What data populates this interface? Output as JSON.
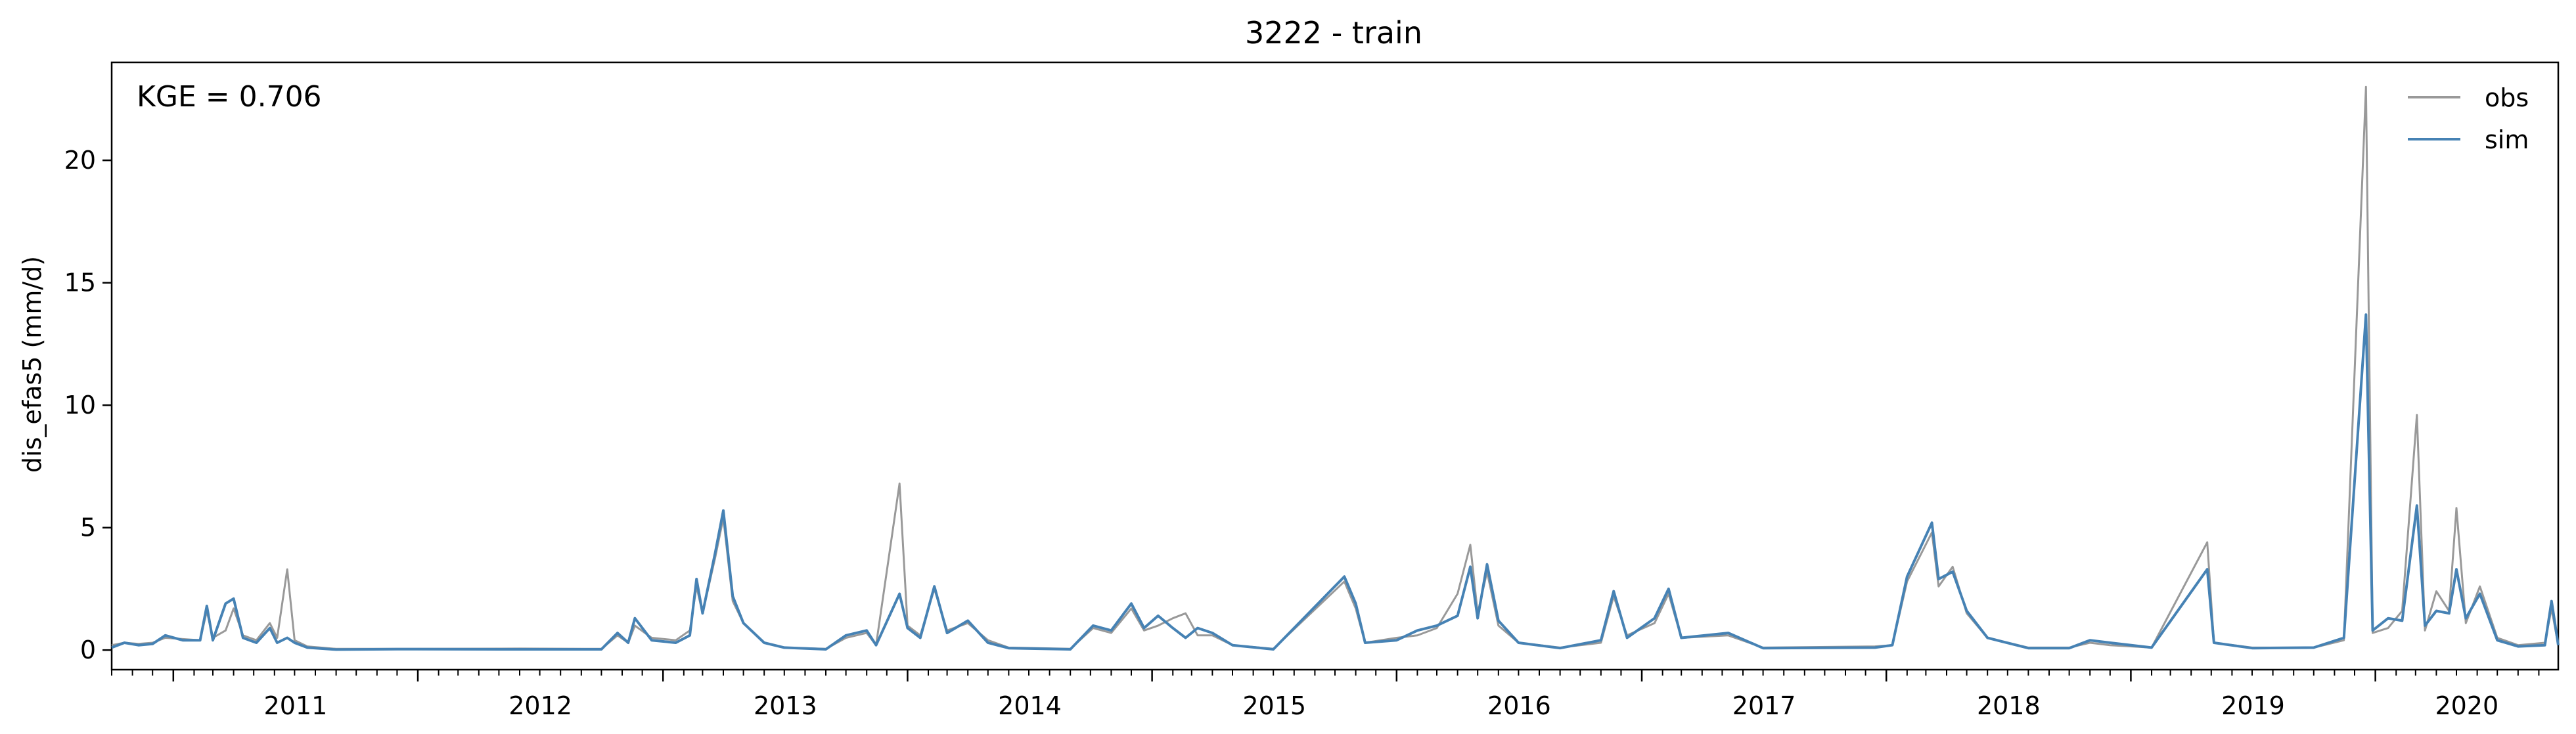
{
  "chart_data": {
    "type": "line",
    "title": "3222 - train",
    "xlabel": "",
    "ylabel": "dis_efas5 (mm/d)",
    "annotation": "KGE = 0.706",
    "legend_position": "top-right",
    "grid": false,
    "x_range": [
      "2010-10-01",
      "2020-09-30"
    ],
    "y_range": [
      -0.8,
      24.0
    ],
    "x_tick_labels": [
      "2011",
      "2012",
      "2013",
      "2014",
      "2015",
      "2016",
      "2017",
      "2018",
      "2019",
      "2020"
    ],
    "x_tick_dates": [
      "2011-01-01",
      "2012-01-01",
      "2013-01-01",
      "2014-01-01",
      "2015-01-01",
      "2016-01-01",
      "2017-01-01",
      "2018-01-01",
      "2019-01-01",
      "2020-01-01"
    ],
    "y_ticks": [
      0,
      5,
      10,
      15,
      20
    ],
    "y_tick_labels": [
      "0",
      "5",
      "10",
      "15",
      "20"
    ],
    "series": [
      {
        "name": "obs",
        "color": "#999999",
        "points": [
          [
            "2010-10-01",
            0.2
          ],
          [
            "2010-10-20",
            0.3
          ],
          [
            "2010-11-10",
            0.25
          ],
          [
            "2010-12-01",
            0.3
          ],
          [
            "2010-12-20",
            0.5
          ],
          [
            "2011-01-15",
            0.45
          ],
          [
            "2011-02-10",
            0.4
          ],
          [
            "2011-02-20",
            1.6
          ],
          [
            "2011-03-01",
            0.5
          ],
          [
            "2011-03-20",
            0.8
          ],
          [
            "2011-04-01",
            1.7
          ],
          [
            "2011-04-15",
            0.6
          ],
          [
            "2011-05-05",
            0.4
          ],
          [
            "2011-05-25",
            1.1
          ],
          [
            "2011-06-05",
            0.5
          ],
          [
            "2011-06-20",
            3.3
          ],
          [
            "2011-07-01",
            0.4
          ],
          [
            "2011-07-20",
            0.15
          ],
          [
            "2011-09-01",
            0.05
          ],
          [
            "2011-12-01",
            0.05
          ],
          [
            "2012-06-01",
            0.06
          ],
          [
            "2012-10-01",
            0.05
          ],
          [
            "2012-10-25",
            0.6
          ],
          [
            "2012-11-10",
            0.3
          ],
          [
            "2012-11-20",
            1.0
          ],
          [
            "2012-12-15",
            0.5
          ],
          [
            "2013-01-20",
            0.4
          ],
          [
            "2013-02-10",
            0.8
          ],
          [
            "2013-02-20",
            2.6
          ],
          [
            "2013-03-01",
            1.5
          ],
          [
            "2013-03-20",
            3.8
          ],
          [
            "2013-04-01",
            5.4
          ],
          [
            "2013-04-15",
            2.0
          ],
          [
            "2013-05-01",
            1.1
          ],
          [
            "2013-06-01",
            0.3
          ],
          [
            "2013-07-01",
            0.1
          ],
          [
            "2013-09-01",
            0.05
          ],
          [
            "2013-10-01",
            0.5
          ],
          [
            "2013-11-01",
            0.7
          ],
          [
            "2013-11-15",
            0.2
          ],
          [
            "2013-12-20",
            6.8
          ],
          [
            "2014-01-01",
            1.0
          ],
          [
            "2014-01-20",
            0.6
          ],
          [
            "2014-02-10",
            2.5
          ],
          [
            "2014-03-01",
            0.8
          ],
          [
            "2014-04-01",
            1.1
          ],
          [
            "2014-05-01",
            0.4
          ],
          [
            "2014-06-01",
            0.1
          ],
          [
            "2014-09-01",
            0.05
          ],
          [
            "2014-10-05",
            0.9
          ],
          [
            "2014-11-01",
            0.7
          ],
          [
            "2014-12-01",
            1.7
          ],
          [
            "2014-12-20",
            0.8
          ],
          [
            "2015-01-10",
            1.0
          ],
          [
            "2015-02-01",
            1.3
          ],
          [
            "2015-02-20",
            1.5
          ],
          [
            "2015-03-10",
            0.6
          ],
          [
            "2015-04-01",
            0.6
          ],
          [
            "2015-05-01",
            0.2
          ],
          [
            "2015-07-01",
            0.05
          ],
          [
            "2015-10-15",
            2.8
          ],
          [
            "2015-11-01",
            1.7
          ],
          [
            "2015-11-15",
            0.3
          ],
          [
            "2016-01-01",
            0.5
          ],
          [
            "2016-02-01",
            0.6
          ],
          [
            "2016-03-01",
            0.9
          ],
          [
            "2016-04-01",
            2.3
          ],
          [
            "2016-04-20",
            4.3
          ],
          [
            "2016-05-01",
            1.5
          ],
          [
            "2016-05-15",
            3.2
          ],
          [
            "2016-06-01",
            1.0
          ],
          [
            "2016-07-01",
            0.3
          ],
          [
            "2016-09-01",
            0.1
          ],
          [
            "2016-11-01",
            0.3
          ],
          [
            "2016-11-20",
            2.2
          ],
          [
            "2016-12-10",
            0.6
          ],
          [
            "2017-01-20",
            1.1
          ],
          [
            "2017-02-10",
            2.3
          ],
          [
            "2017-03-01",
            0.5
          ],
          [
            "2017-05-10",
            0.6
          ],
          [
            "2017-07-01",
            0.1
          ],
          [
            "2017-12-15",
            0.15
          ],
          [
            "2018-01-10",
            0.2
          ],
          [
            "2018-02-01",
            2.8
          ],
          [
            "2018-03-10",
            4.8
          ],
          [
            "2018-03-20",
            2.6
          ],
          [
            "2018-04-10",
            3.4
          ],
          [
            "2018-05-01",
            1.5
          ],
          [
            "2018-06-01",
            0.5
          ],
          [
            "2018-08-01",
            0.1
          ],
          [
            "2018-10-01",
            0.1
          ],
          [
            "2018-11-01",
            0.3
          ],
          [
            "2018-12-01",
            0.2
          ],
          [
            "2019-02-01",
            0.1
          ],
          [
            "2019-04-25",
            4.4
          ],
          [
            "2019-05-05",
            0.3
          ],
          [
            "2019-07-01",
            0.1
          ],
          [
            "2019-10-01",
            0.1
          ],
          [
            "2019-11-15",
            0.4
          ],
          [
            "2019-12-18",
            23.0
          ],
          [
            "2019-12-28",
            0.7
          ],
          [
            "2020-01-20",
            0.9
          ],
          [
            "2020-02-10",
            1.6
          ],
          [
            "2020-03-03",
            9.6
          ],
          [
            "2020-03-15",
            0.8
          ],
          [
            "2020-04-01",
            2.4
          ],
          [
            "2020-04-20",
            1.6
          ],
          [
            "2020-05-01",
            5.8
          ],
          [
            "2020-05-15",
            1.1
          ],
          [
            "2020-06-05",
            2.6
          ],
          [
            "2020-07-01",
            0.5
          ],
          [
            "2020-08-01",
            0.2
          ],
          [
            "2020-09-10",
            0.3
          ],
          [
            "2020-09-20",
            1.7
          ],
          [
            "2020-09-30",
            0.2
          ]
        ]
      },
      {
        "name": "sim",
        "color": "#4682b4",
        "points": [
          [
            "2010-10-01",
            0.1
          ],
          [
            "2010-10-20",
            0.3
          ],
          [
            "2010-11-10",
            0.2
          ],
          [
            "2010-12-01",
            0.25
          ],
          [
            "2010-12-20",
            0.6
          ],
          [
            "2011-01-15",
            0.4
          ],
          [
            "2011-02-10",
            0.4
          ],
          [
            "2011-02-20",
            1.8
          ],
          [
            "2011-03-01",
            0.4
          ],
          [
            "2011-03-20",
            1.9
          ],
          [
            "2011-04-01",
            2.1
          ],
          [
            "2011-04-15",
            0.5
          ],
          [
            "2011-05-05",
            0.3
          ],
          [
            "2011-05-25",
            0.9
          ],
          [
            "2011-06-05",
            0.3
          ],
          [
            "2011-06-20",
            0.5
          ],
          [
            "2011-07-01",
            0.3
          ],
          [
            "2011-07-20",
            0.1
          ],
          [
            "2011-09-01",
            0.02
          ],
          [
            "2011-12-01",
            0.04
          ],
          [
            "2012-06-01",
            0.03
          ],
          [
            "2012-10-01",
            0.03
          ],
          [
            "2012-10-25",
            0.7
          ],
          [
            "2012-11-10",
            0.3
          ],
          [
            "2012-11-20",
            1.3
          ],
          [
            "2012-12-15",
            0.4
          ],
          [
            "2013-01-20",
            0.3
          ],
          [
            "2013-02-10",
            0.6
          ],
          [
            "2013-02-20",
            2.9
          ],
          [
            "2013-03-01",
            1.5
          ],
          [
            "2013-03-20",
            4.0
          ],
          [
            "2013-04-01",
            5.7
          ],
          [
            "2013-04-15",
            2.2
          ],
          [
            "2013-05-01",
            1.1
          ],
          [
            "2013-06-01",
            0.3
          ],
          [
            "2013-07-01",
            0.1
          ],
          [
            "2013-09-01",
            0.03
          ],
          [
            "2013-10-01",
            0.6
          ],
          [
            "2013-11-01",
            0.8
          ],
          [
            "2013-11-15",
            0.2
          ],
          [
            "2013-12-20",
            2.3
          ],
          [
            "2014-01-01",
            0.9
          ],
          [
            "2014-01-20",
            0.5
          ],
          [
            "2014-02-10",
            2.6
          ],
          [
            "2014-03-01",
            0.7
          ],
          [
            "2014-04-01",
            1.2
          ],
          [
            "2014-05-01",
            0.3
          ],
          [
            "2014-06-01",
            0.08
          ],
          [
            "2014-09-01",
            0.03
          ],
          [
            "2014-10-05",
            1.0
          ],
          [
            "2014-11-01",
            0.8
          ],
          [
            "2014-12-01",
            1.9
          ],
          [
            "2014-12-20",
            0.9
          ],
          [
            "2015-01-10",
            1.4
          ],
          [
            "2015-02-01",
            0.9
          ],
          [
            "2015-02-20",
            0.5
          ],
          [
            "2015-03-10",
            0.9
          ],
          [
            "2015-04-01",
            0.7
          ],
          [
            "2015-05-01",
            0.2
          ],
          [
            "2015-07-01",
            0.03
          ],
          [
            "2015-10-15",
            3.0
          ],
          [
            "2015-11-01",
            1.9
          ],
          [
            "2015-11-15",
            0.3
          ],
          [
            "2016-01-01",
            0.4
          ],
          [
            "2016-02-01",
            0.8
          ],
          [
            "2016-03-01",
            1.0
          ],
          [
            "2016-04-01",
            1.4
          ],
          [
            "2016-04-20",
            3.4
          ],
          [
            "2016-05-01",
            1.3
          ],
          [
            "2016-05-15",
            3.5
          ],
          [
            "2016-06-01",
            1.2
          ],
          [
            "2016-07-01",
            0.3
          ],
          [
            "2016-09-01",
            0.08
          ],
          [
            "2016-11-01",
            0.4
          ],
          [
            "2016-11-20",
            2.4
          ],
          [
            "2016-12-10",
            0.5
          ],
          [
            "2017-01-20",
            1.3
          ],
          [
            "2017-02-10",
            2.5
          ],
          [
            "2017-03-01",
            0.5
          ],
          [
            "2017-05-10",
            0.7
          ],
          [
            "2017-07-01",
            0.08
          ],
          [
            "2017-12-15",
            0.1
          ],
          [
            "2018-01-10",
            0.2
          ],
          [
            "2018-02-01",
            3.0
          ],
          [
            "2018-03-10",
            5.2
          ],
          [
            "2018-03-20",
            2.9
          ],
          [
            "2018-04-10",
            3.2
          ],
          [
            "2018-05-01",
            1.6
          ],
          [
            "2018-06-01",
            0.5
          ],
          [
            "2018-08-01",
            0.08
          ],
          [
            "2018-10-01",
            0.08
          ],
          [
            "2018-11-01",
            0.4
          ],
          [
            "2018-12-01",
            0.3
          ],
          [
            "2019-02-01",
            0.1
          ],
          [
            "2019-04-25",
            3.3
          ],
          [
            "2019-05-05",
            0.3
          ],
          [
            "2019-07-01",
            0.08
          ],
          [
            "2019-10-01",
            0.1
          ],
          [
            "2019-11-15",
            0.5
          ],
          [
            "2019-12-18",
            13.7
          ],
          [
            "2019-12-28",
            0.8
          ],
          [
            "2020-01-20",
            1.3
          ],
          [
            "2020-02-10",
            1.2
          ],
          [
            "2020-03-03",
            5.9
          ],
          [
            "2020-03-15",
            1.0
          ],
          [
            "2020-04-01",
            1.6
          ],
          [
            "2020-04-20",
            1.5
          ],
          [
            "2020-05-01",
            3.3
          ],
          [
            "2020-05-15",
            1.3
          ],
          [
            "2020-06-05",
            2.3
          ],
          [
            "2020-07-01",
            0.4
          ],
          [
            "2020-08-01",
            0.15
          ],
          [
            "2020-09-10",
            0.2
          ],
          [
            "2020-09-20",
            2.0
          ],
          [
            "2020-09-30",
            0.2
          ]
        ]
      }
    ]
  }
}
